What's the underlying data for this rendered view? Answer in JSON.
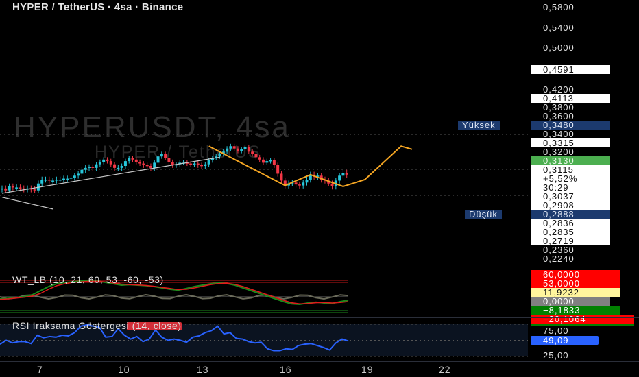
{
  "header": {
    "title": "HYPER / TetherUS · 4sa · Binance",
    "watermark": "HYPERUSDT, 4sa",
    "watermark_sub": "HYPER / TetherUS"
  },
  "colors": {
    "up": "#26c6da",
    "down": "#f23645",
    "zigzag": "#f5a623",
    "trendline": "#c8c8c8",
    "rsi": "#2962ff",
    "wt_green": "#1b8a1b",
    "wt_red": "#e01b1b",
    "wt_gray": "#6b6b5a"
  },
  "price_axis": {
    "ticks": [
      "0,5800",
      "0,5400",
      "0,5000",
      "0,4200",
      "0,3800",
      "0,3600",
      "0,3400",
      "0,3200",
      "0,2360",
      "0,2240"
    ],
    "boxes": [
      "0,4591",
      "0,4113",
      "0,3315",
      "0,3037",
      "0,2908",
      "0,2836",
      "0,2835",
      "0,2719"
    ],
    "high": {
      "label": "Yüksek",
      "value": "0,3480"
    },
    "low": {
      "label": "Düşük",
      "value": "0,2888"
    },
    "last_price": "0,3130",
    "current": {
      "price": "0,3115",
      "change": "+5,52%",
      "countdown": "30:29"
    }
  },
  "wt_pane": {
    "title": "WT_LB (10, 21, 60, 53, -60, -53)",
    "labels": [
      {
        "v": "60,0000",
        "bg": "#ff0000",
        "fg": "#fff"
      },
      {
        "v": "53,0000",
        "bg": "#ff0000",
        "fg": "#fff"
      },
      {
        "v": "11,9232",
        "bg": "#fff59d",
        "fg": "#111"
      },
      {
        "v": "0,0000",
        "bg": "#808080",
        "fg": "#fff"
      },
      {
        "v": "−8,1833",
        "bg": "#008000",
        "fg": "#fff"
      },
      {
        "v": "−20,1064",
        "bg": "#ff0000",
        "fg": "#fff"
      }
    ]
  },
  "rsi_pane": {
    "title": "RSI Iraksama Göstergesi (14, close)",
    "ticks": [
      "75,00",
      "25,00"
    ],
    "value": "49,09"
  },
  "x_axis": [
    "7",
    "10",
    "13",
    "16",
    "19",
    "22"
  ],
  "chart_data": {
    "type": "candlestick",
    "title": "HYPER / TetherUS · 4sa · Binance",
    "ylim": [
      0.224,
      0.58
    ],
    "closes": [
      0.297,
      0.295,
      0.299,
      0.298,
      0.298,
      0.297,
      0.296,
      0.297,
      0.296,
      0.295,
      0.302,
      0.306,
      0.306,
      0.305,
      0.305,
      0.306,
      0.306,
      0.307,
      0.307,
      0.308,
      0.31,
      0.312,
      0.316,
      0.318,
      0.319,
      0.318,
      0.322,
      0.325,
      0.328,
      0.326,
      0.322,
      0.318,
      0.318,
      0.32,
      0.326,
      0.33,
      0.328,
      0.325,
      0.323,
      0.321,
      0.32,
      0.318,
      0.324,
      0.332,
      0.335,
      0.33,
      0.325,
      0.321,
      0.322,
      0.324,
      0.324,
      0.323,
      0.322,
      0.323,
      0.321,
      0.32,
      0.322,
      0.327,
      0.33,
      0.332,
      0.335,
      0.338,
      0.342,
      0.345,
      0.342,
      0.339,
      0.341,
      0.344,
      0.338,
      0.335,
      0.331,
      0.328,
      0.324,
      0.326,
      0.327,
      0.321,
      0.312,
      0.305,
      0.3,
      0.302,
      0.303,
      0.301,
      0.3,
      0.303,
      0.306,
      0.311,
      0.309,
      0.31,
      0.306,
      0.305,
      0.302,
      0.299,
      0.305,
      0.31,
      0.313,
      0.311
    ],
    "zigzag": [
      [
        57,
        0.345
      ],
      [
        78,
        0.3
      ],
      [
        85,
        0.311
      ],
      [
        94,
        0.299
      ],
      [
        100,
        0.306
      ],
      [
        110,
        0.345
      ],
      [
        113,
        0.341
      ]
    ],
    "trendlines": [
      [
        [
          0,
          0.292
        ],
        [
          60,
          0.331
        ]
      ],
      [
        [
          0,
          0.288
        ],
        [
          14,
          0.276
        ]
      ]
    ],
    "wt1": [
      -10,
      -8,
      -5,
      -2,
      5,
      20,
      35,
      45,
      50,
      52,
      55,
      57,
      55,
      50,
      45,
      40,
      42,
      40,
      38,
      35,
      30,
      25,
      22,
      28,
      35,
      40,
      45,
      48,
      46,
      40,
      30,
      20,
      10,
      0,
      -10,
      -20,
      -28,
      -30,
      -25,
      -22,
      -25,
      -27,
      -20,
      -15
    ],
    "wt2": [
      -12,
      -10,
      -7,
      -4,
      0,
      10,
      25,
      38,
      45,
      50,
      52,
      54,
      54,
      52,
      48,
      44,
      42,
      41,
      39,
      36,
      32,
      28,
      24,
      25,
      30,
      36,
      42,
      46,
      47,
      43,
      35,
      25,
      15,
      5,
      -5,
      -15,
      -24,
      -28,
      -27,
      -24,
      -23,
      -25,
      -23,
      -20
    ],
    "rsi": [
      44,
      50,
      46,
      48,
      48,
      45,
      58,
      54,
      56,
      55,
      58,
      57,
      62,
      72,
      74,
      72,
      70,
      55,
      56,
      68,
      58,
      52,
      56,
      48,
      52,
      66,
      55,
      50,
      52,
      50,
      47,
      55,
      57,
      62,
      65,
      72,
      60,
      62,
      53,
      52,
      48,
      46,
      47,
      37,
      34,
      34,
      37,
      36,
      42,
      44,
      45,
      42,
      39,
      35,
      46,
      52,
      49
    ]
  }
}
